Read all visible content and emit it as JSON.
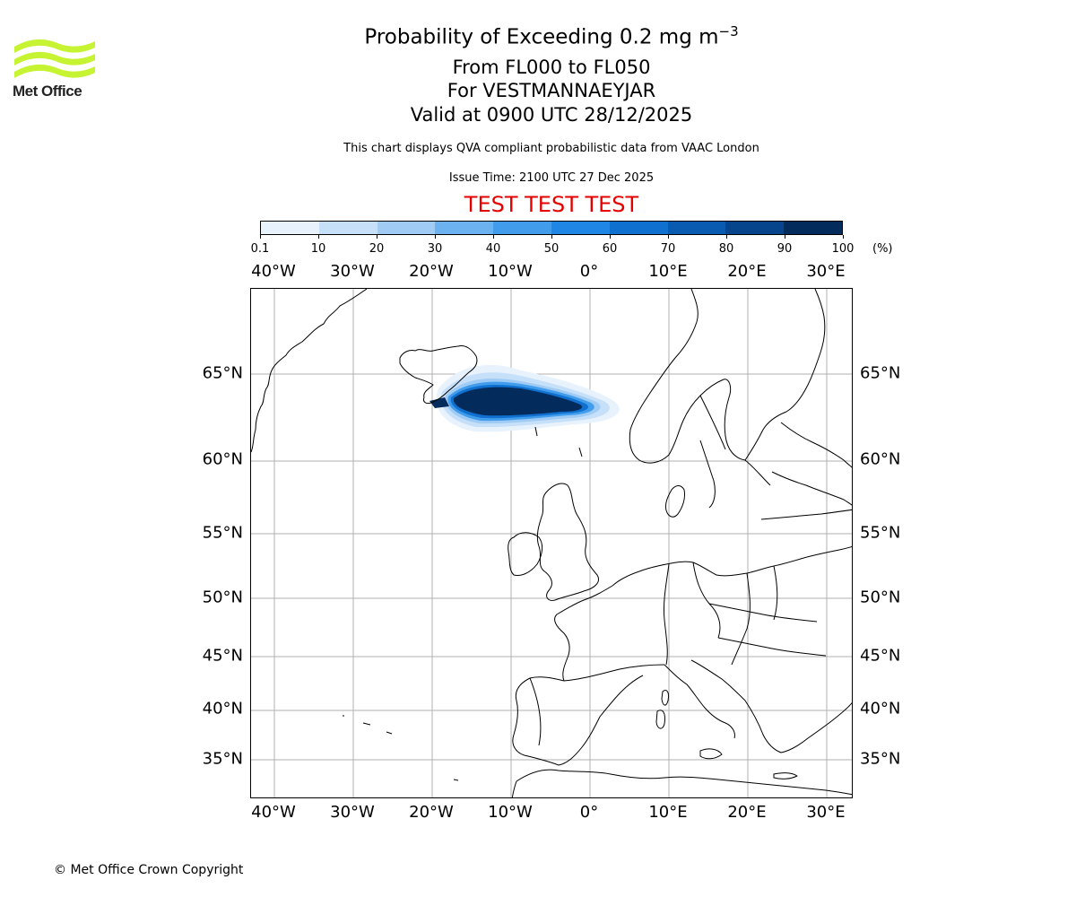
{
  "logo": {
    "name": "Met Office",
    "icon": "met-office-waves-icon",
    "color": "#c6f432"
  },
  "header": {
    "title_prefix": "Probability of Exceeding 0.2 mg m",
    "title_exponent": "−3",
    "flight_levels": "From FL000 to FL050",
    "volcano": "For VESTMANNAEYJAR",
    "valid_time": "Valid at 0900 UTC 28/12/2025",
    "description": "This chart displays QVA compliant probabilistic data from VAAC London",
    "issue_time": "Issue Time: 2100 UTC 27 Dec 2025",
    "test_banner": "TEST TEST TEST",
    "test_banner_color": "#e50000"
  },
  "colorbar": {
    "ticks": [
      "0.1",
      "10",
      "20",
      "30",
      "40",
      "50",
      "60",
      "70",
      "80",
      "90",
      "100"
    ],
    "unit": "(%)",
    "colors": [
      "#e8f2fd",
      "#c6e0f9",
      "#9fcbf5",
      "#6db2f0",
      "#419cec",
      "#1f86e6",
      "#0f70d0",
      "#085bb0",
      "#06458c",
      "#032c5c"
    ]
  },
  "map": {
    "lon_labels": [
      "40°W",
      "30°W",
      "20°W",
      "10°W",
      "0°",
      "10°E",
      "20°E",
      "30°E"
    ],
    "lat_labels": [
      "65°N",
      "60°N",
      "55°N",
      "50°N",
      "45°N",
      "40°N",
      "35°N"
    ],
    "plume_source": "VESTMANNAEYJAR"
  },
  "footer": {
    "copyright": "© Met Office Crown Copyright"
  }
}
